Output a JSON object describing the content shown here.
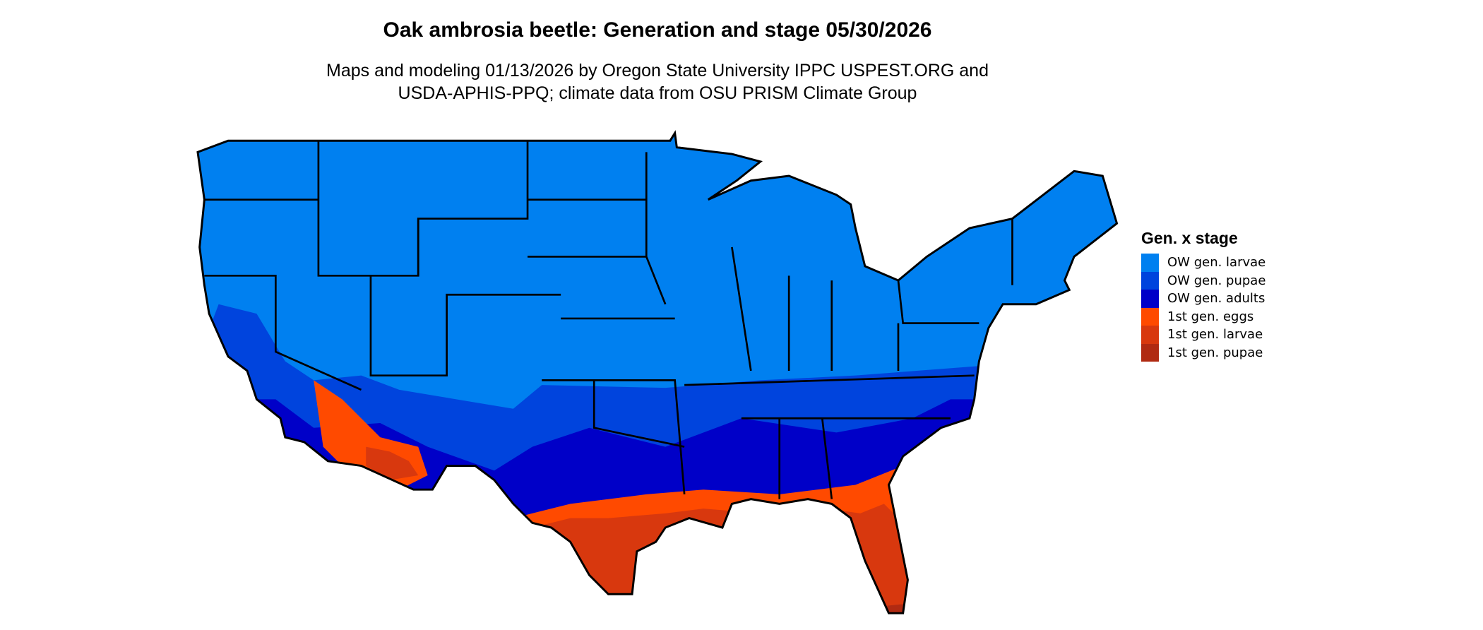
{
  "title": "Oak ambrosia beetle: Generation and stage 05/30/2026",
  "subtitle": [
    "Maps and modeling 01/13/2026 by Oregon State University IPPC USPEST.ORG and",
    "USDA-APHIS-PPQ; climate data from OSU PRISM Climate Group"
  ],
  "legend": {
    "title": "Gen. x stage",
    "items": [
      {
        "label": "OW gen. larvae",
        "color": "#0080F0"
      },
      {
        "label": "OW gen. pupae",
        "color": "#0044DD"
      },
      {
        "label": "OW gen. adults",
        "color": "#0000C8"
      },
      {
        "label": "1st gen. eggs",
        "color": "#FF4A00"
      },
      {
        "label": "1st gen. larvae",
        "color": "#D8380E"
      },
      {
        "label": "1st gen. pupae",
        "color": "#B02A12"
      }
    ]
  }
}
